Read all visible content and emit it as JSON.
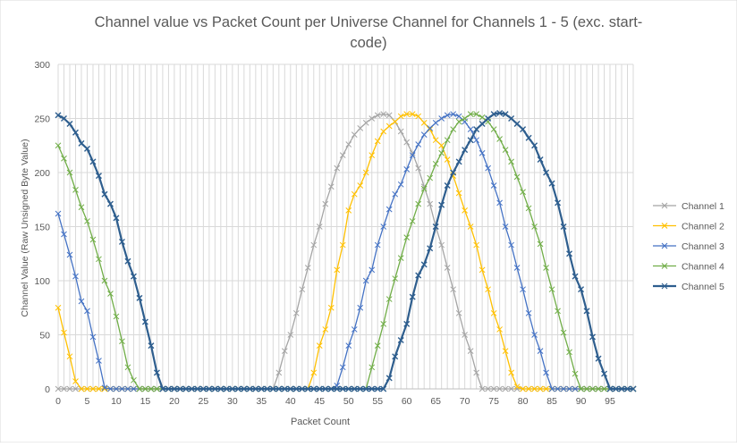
{
  "chart_data": {
    "type": "line",
    "title_line1": "Channel value vs Packet Count per Universe Channel for Channels 1 - 5 (exc. start-",
    "title_line2": "code)",
    "xlabel": "Packet Count",
    "ylabel": "Channel Value (Raw Unsigned Byte Value)",
    "xlim": [
      0,
      99
    ],
    "ylim": [
      0,
      300
    ],
    "x_ticks": [
      "0",
      "5",
      "10",
      "15",
      "20",
      "25",
      "30",
      "35",
      "40",
      "45",
      "50",
      "55",
      "60",
      "65",
      "70",
      "75",
      "80",
      "85",
      "90",
      "95"
    ],
    "x_tick_values": [
      0,
      5,
      10,
      15,
      20,
      25,
      30,
      35,
      40,
      45,
      50,
      55,
      60,
      65,
      70,
      75,
      80,
      85,
      90,
      95
    ],
    "y_ticks": [
      "0",
      "50",
      "100",
      "150",
      "200",
      "250",
      "300"
    ],
    "y_tick_values": [
      0,
      50,
      100,
      150,
      200,
      250,
      300
    ],
    "grid": true,
    "legend_position": "right",
    "x": [
      0,
      1,
      2,
      3,
      4,
      5,
      6,
      7,
      8,
      9,
      10,
      11,
      12,
      13,
      14,
      15,
      16,
      17,
      18,
      19,
      20,
      21,
      22,
      23,
      24,
      25,
      26,
      27,
      28,
      29,
      30,
      31,
      32,
      33,
      34,
      35,
      36,
      37,
      38,
      39,
      40,
      41,
      42,
      43,
      44,
      45,
      46,
      47,
      48,
      49,
      50,
      51,
      52,
      53,
      54,
      55,
      56,
      57,
      58,
      59,
      60,
      61,
      62,
      63,
      64,
      65,
      66,
      67,
      68,
      69,
      70,
      71,
      72,
      73,
      74,
      75,
      76,
      77,
      78,
      79,
      80,
      81,
      82,
      83,
      84,
      85,
      86,
      87,
      88,
      89,
      90,
      91,
      92,
      93,
      94,
      95,
      96,
      97,
      98,
      99
    ],
    "series": [
      {
        "name": "Channel 1",
        "color": "#a5a5a5",
        "values": [
          0,
          0,
          0,
          0,
          0,
          0,
          0,
          0,
          0,
          0,
          0,
          0,
          0,
          0,
          0,
          0,
          0,
          0,
          0,
          0,
          0,
          0,
          0,
          0,
          0,
          0,
          0,
          0,
          0,
          0,
          0,
          0,
          0,
          0,
          0,
          0,
          0,
          0,
          15,
          35,
          50,
          70,
          92,
          112,
          133,
          150,
          171,
          187,
          204,
          216,
          226,
          235,
          241,
          246,
          250,
          253,
          254,
          253,
          247,
          238,
          228,
          218,
          204,
          187,
          171,
          150,
          133,
          112,
          92,
          70,
          50,
          35,
          15,
          0,
          0,
          0,
          0,
          0,
          0,
          0,
          0,
          0,
          0,
          0,
          0,
          0,
          0,
          0,
          0,
          0,
          0,
          0,
          0,
          0,
          0,
          0,
          0,
          0,
          0,
          0
        ]
      },
      {
        "name": "Channel 2",
        "color": "#ffc000",
        "values": [
          75,
          52,
          30,
          7,
          0,
          0,
          0,
          0,
          0,
          0,
          0,
          0,
          0,
          0,
          0,
          0,
          0,
          0,
          0,
          0,
          0,
          0,
          0,
          0,
          0,
          0,
          0,
          0,
          0,
          0,
          0,
          0,
          0,
          0,
          0,
          0,
          0,
          0,
          0,
          0,
          0,
          0,
          0,
          0,
          15,
          40,
          55,
          75,
          110,
          133,
          165,
          180,
          188,
          200,
          216,
          229,
          238,
          243,
          247,
          252,
          254,
          254,
          252,
          246,
          240,
          230,
          225,
          212,
          197,
          181,
          165,
          150,
          133,
          110,
          92,
          70,
          55,
          35,
          15,
          2,
          0,
          0,
          0,
          0,
          0,
          0,
          0,
          0,
          0,
          0,
          0,
          0,
          0,
          0,
          0,
          0,
          0,
          0,
          0,
          0
        ]
      },
      {
        "name": "Channel 3",
        "color": "#4472c4",
        "values": [
          162,
          143,
          124,
          104,
          81,
          72,
          48,
          26,
          1,
          0,
          0,
          0,
          0,
          0,
          0,
          0,
          0,
          0,
          0,
          0,
          0,
          0,
          0,
          0,
          0,
          0,
          0,
          0,
          0,
          0,
          0,
          0,
          0,
          0,
          0,
          0,
          0,
          0,
          0,
          0,
          0,
          0,
          0,
          0,
          0,
          0,
          0,
          0,
          3,
          20,
          40,
          55,
          75,
          100,
          110,
          133,
          150,
          166,
          180,
          189,
          203,
          216,
          226,
          235,
          241,
          246,
          250,
          253,
          254,
          252,
          247,
          240,
          230,
          218,
          204,
          188,
          172,
          150,
          133,
          112,
          92,
          70,
          50,
          35,
          15,
          0,
          0,
          0,
          0,
          0,
          0,
          0,
          0,
          0,
          0,
          0,
          0,
          0,
          0,
          0
        ]
      },
      {
        "name": "Channel 4",
        "color": "#70ad47",
        "values": [
          225,
          213,
          200,
          184,
          168,
          155,
          138,
          120,
          100,
          88,
          67,
          44,
          20,
          8,
          0,
          0,
          0,
          0,
          0,
          0,
          0,
          0,
          0,
          0,
          0,
          0,
          0,
          0,
          0,
          0,
          0,
          0,
          0,
          0,
          0,
          0,
          0,
          0,
          0,
          0,
          0,
          0,
          0,
          0,
          0,
          0,
          0,
          0,
          0,
          0,
          0,
          0,
          0,
          0,
          20,
          40,
          60,
          83,
          102,
          121,
          140,
          155,
          171,
          185,
          195,
          208,
          218,
          230,
          240,
          247,
          250,
          254,
          254,
          251,
          247,
          240,
          231,
          221,
          210,
          196,
          182,
          167,
          150,
          134,
          112,
          92,
          72,
          52,
          34,
          14,
          0,
          0,
          0,
          0,
          0,
          0,
          0,
          0,
          0,
          0
        ]
      },
      {
        "name": "Channel 5",
        "color": "#2e5e8e",
        "values": [
          253,
          250,
          245,
          237,
          227,
          222,
          210,
          197,
          180,
          171,
          158,
          136,
          118,
          104,
          84,
          62,
          40,
          15,
          0,
          0,
          0,
          0,
          0,
          0,
          0,
          0,
          0,
          0,
          0,
          0,
          0,
          0,
          0,
          0,
          0,
          0,
          0,
          0,
          0,
          0,
          0,
          0,
          0,
          0,
          0,
          0,
          0,
          0,
          0,
          0,
          0,
          0,
          0,
          0,
          0,
          0,
          0,
          10,
          30,
          45,
          60,
          85,
          105,
          115,
          130,
          150,
          170,
          188,
          200,
          210,
          221,
          230,
          240,
          245,
          250,
          254,
          255,
          254,
          250,
          245,
          240,
          232,
          225,
          212,
          200,
          190,
          172,
          150,
          125,
          104,
          92,
          72,
          48,
          28,
          14,
          0,
          0,
          0,
          0,
          0
        ]
      }
    ]
  }
}
